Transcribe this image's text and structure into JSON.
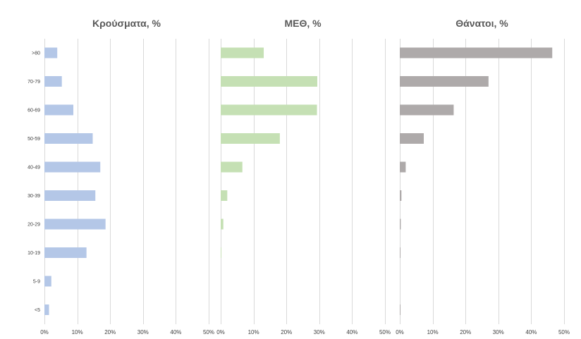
{
  "chart_data": {
    "type": "bar",
    "orientation": "horizontal",
    "categories": [
      ">80",
      "70-79",
      "60-69",
      "50-59",
      "40-49",
      "30-39",
      "20-29",
      "10-19",
      "5-9",
      "<5"
    ],
    "xlim": [
      0,
      50
    ],
    "ticks": [
      "0%",
      "10%",
      "20%",
      "30%",
      "40%",
      "50%"
    ],
    "grid": "vertical",
    "legend": "none",
    "panels": [
      {
        "title": "Κρούσματα, %",
        "color": "#b4c7e7",
        "values": [
          3.9,
          5.3,
          8.8,
          14.7,
          17.0,
          15.5,
          18.6,
          12.8,
          2.1,
          1.4
        ]
      },
      {
        "title": "ΜΕΘ, %",
        "color": "#c5e0b4",
        "values": [
          13.1,
          29.4,
          29.3,
          18.0,
          6.6,
          2.0,
          0.8,
          0.2,
          0.0,
          0.0
        ]
      },
      {
        "title": "Θάνατοι, %",
        "color": "#aeaaaa",
        "values": [
          46.4,
          27.0,
          16.4,
          7.3,
          1.8,
          0.5,
          0.3,
          0.2,
          0.0,
          0.2
        ]
      }
    ]
  }
}
